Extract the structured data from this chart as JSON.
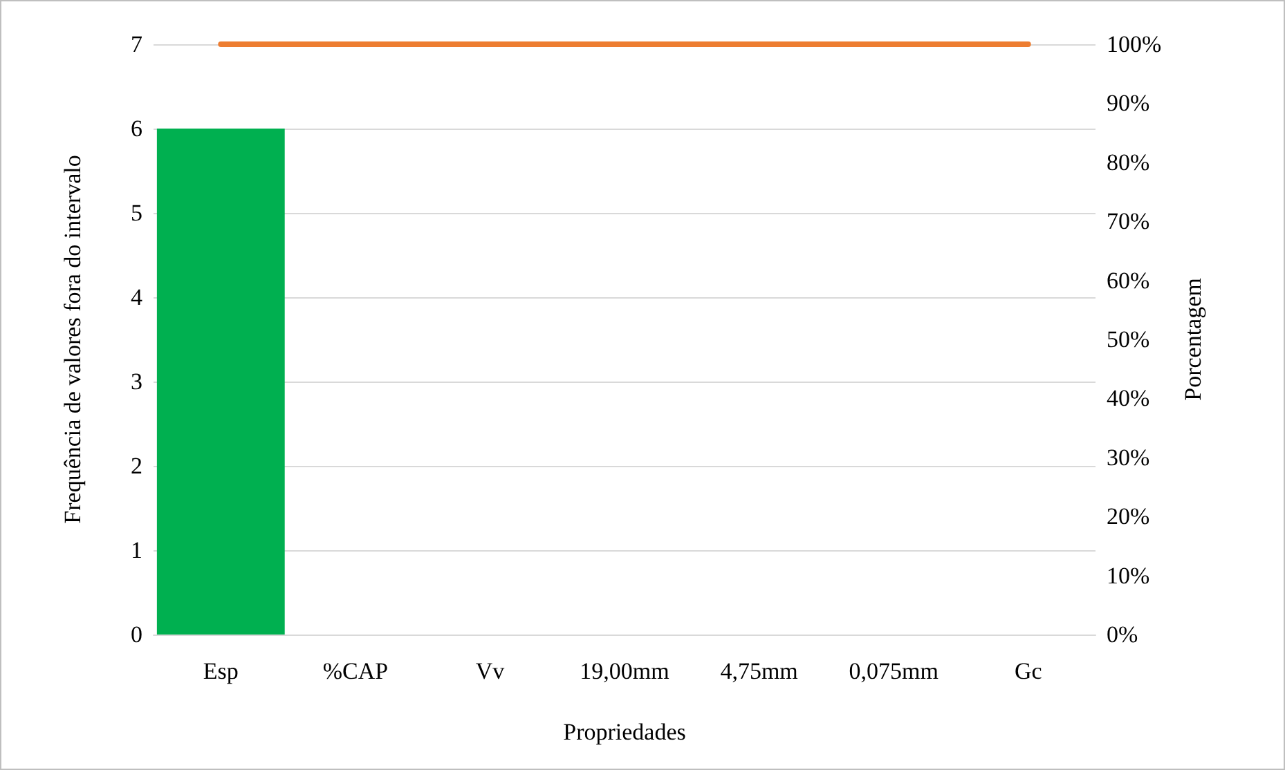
{
  "chart_data": {
    "type": "bar",
    "xlabel": "Propriedades",
    "ylabel": "Frequência de valores fora do intervalo",
    "y2label": "Porcentagem",
    "categories": [
      "Esp",
      "%CAP",
      "Vv",
      "19,00mm",
      "4,75mm",
      "0,075mm",
      "Gc"
    ],
    "series": [
      {
        "color": "#00b050",
        "values": [
          6,
          0,
          0,
          0,
          0,
          0,
          0
        ]
      },
      {
        "type": "line",
        "axis": "y2",
        "color": "#ed7d31",
        "marker": "none",
        "values": [
          100,
          100,
          100,
          100,
          100,
          100,
          100
        ]
      }
    ],
    "ylim": [
      0,
      7
    ],
    "yticks": [
      0,
      1,
      2,
      3,
      4,
      5,
      6,
      7
    ],
    "y2lim": [
      0,
      100
    ],
    "y2ticks": [
      {
        "value": 0,
        "label": "0%"
      },
      {
        "value": 10,
        "label": "10%"
      },
      {
        "value": 20,
        "label": "20%"
      },
      {
        "value": 30,
        "label": "30%"
      },
      {
        "value": 40,
        "label": "40%"
      },
      {
        "value": 50,
        "label": "50%"
      },
      {
        "value": 60,
        "label": "60%"
      },
      {
        "value": 70,
        "label": "70%"
      },
      {
        "value": 80,
        "label": "80%"
      },
      {
        "value": 90,
        "label": "90%"
      },
      {
        "value": 100,
        "label": "100%"
      }
    ],
    "grid": "y"
  }
}
